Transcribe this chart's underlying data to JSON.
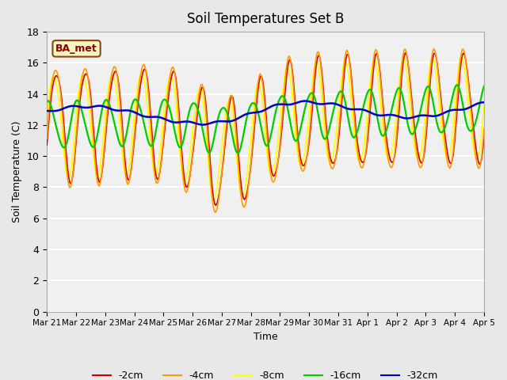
{
  "title": "Soil Temperatures Set B",
  "xlabel": "Time",
  "ylabel": "Soil Temperature (C)",
  "ylim": [
    0,
    18
  ],
  "yticks": [
    0,
    2,
    4,
    6,
    8,
    10,
    12,
    14,
    16,
    18
  ],
  "annotation": "BA_met",
  "colors": {
    "-2cm": "#cc0000",
    "-4cm": "#ff9900",
    "-8cm": "#ffff00",
    "-16cm": "#00cc00",
    "-32cm": "#0000cc"
  },
  "legend_labels": [
    "-2cm",
    "-4cm",
    "-8cm",
    "-16cm",
    "-32cm"
  ],
  "n_points": 384,
  "date_labels": [
    "Mar 21",
    "Mar 22",
    "Mar 23",
    "Mar 24",
    "Mar 25",
    "Mar 26",
    "Mar 27",
    "Mar 28",
    "Mar 29",
    "Mar 30",
    "Mar 31",
    "Apr 1",
    "Apr 2",
    "Apr 3",
    "Apr 4",
    "Apr 5"
  ],
  "background_color": "#e8e8e8",
  "plot_bg": "#f0f0f0",
  "grid_color": "#ffffff",
  "lw_shallow": 1.2,
  "lw_deep": 1.8
}
